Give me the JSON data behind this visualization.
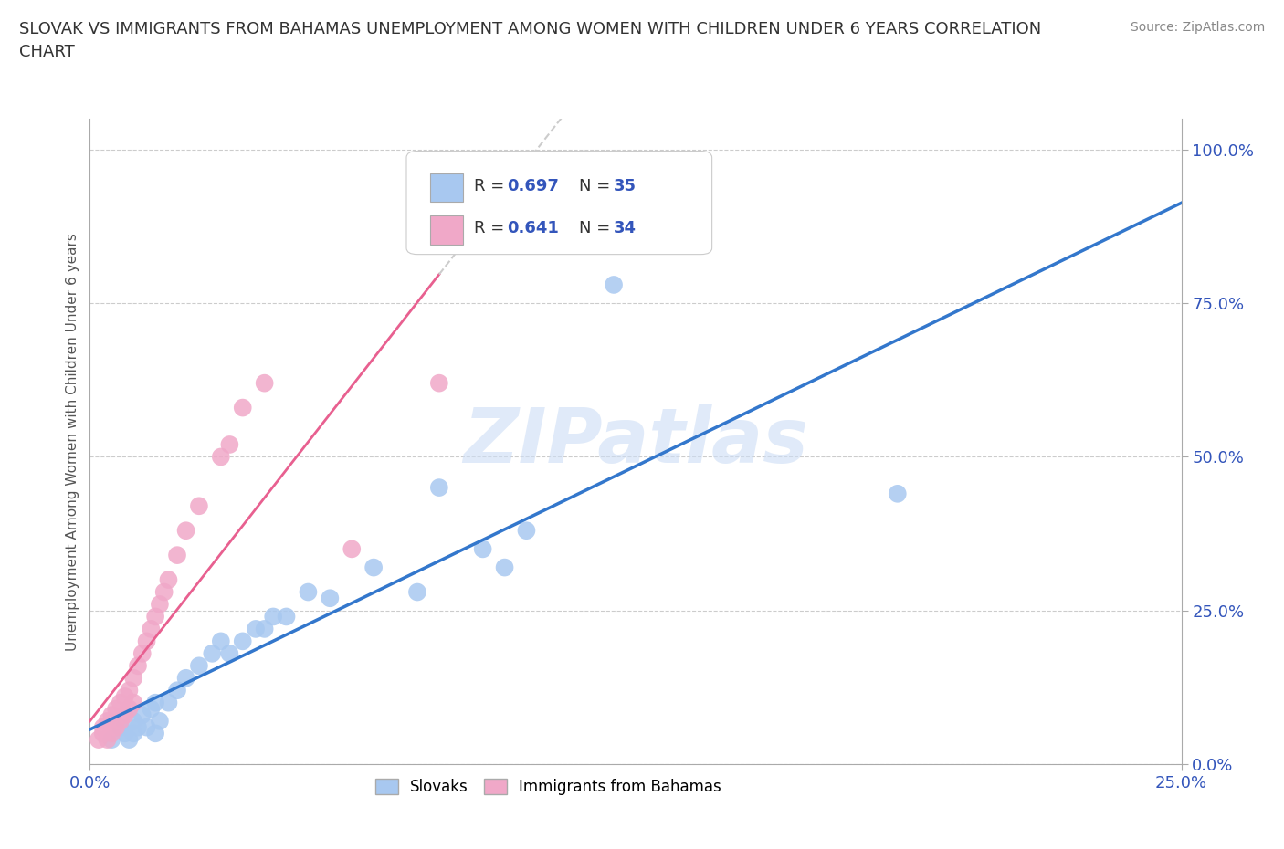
{
  "title": "SLOVAK VS IMMIGRANTS FROM BAHAMAS UNEMPLOYMENT AMONG WOMEN WITH CHILDREN UNDER 6 YEARS CORRELATION\nCHART",
  "source_text": "Source: ZipAtlas.com",
  "ylabel": "Unemployment Among Women with Children Under 6 years",
  "xlim": [
    0,
    0.25
  ],
  "ylim": [
    0,
    1.05
  ],
  "xticks": [
    0.0,
    0.25
  ],
  "yticks": [
    0.0,
    0.25,
    0.5,
    0.75,
    1.0
  ],
  "ytick_labels": [
    "0.0%",
    "25.0%",
    "50.0%",
    "75.0%",
    "100.0%"
  ],
  "xtick_labels": [
    "0.0%",
    "25.0%"
  ],
  "slovak_R": 0.697,
  "slovak_N": 35,
  "bahamas_R": 0.641,
  "bahamas_N": 34,
  "slovak_color": "#a8c8f0",
  "bahamas_color": "#f0a8c8",
  "slovak_line_color": "#3377cc",
  "bahamas_line_color": "#e86090",
  "bahamas_dashed_color": "#cccccc",
  "legend_r_color": "#3355bb",
  "background_color": "#ffffff",
  "slovak_x": [
    0.005,
    0.007,
    0.008,
    0.009,
    0.01,
    0.01,
    0.011,
    0.012,
    0.013,
    0.014,
    0.015,
    0.015,
    0.016,
    0.018,
    0.02,
    0.022,
    0.025,
    0.028,
    0.03,
    0.032,
    0.035,
    0.038,
    0.04,
    0.042,
    0.045,
    0.05,
    0.055,
    0.065,
    0.075,
    0.08,
    0.09,
    0.095,
    0.1,
    0.12,
    0.185
  ],
  "slovak_y": [
    0.04,
    0.06,
    0.05,
    0.04,
    0.07,
    0.05,
    0.06,
    0.08,
    0.06,
    0.09,
    0.05,
    0.1,
    0.07,
    0.1,
    0.12,
    0.14,
    0.16,
    0.18,
    0.2,
    0.18,
    0.2,
    0.22,
    0.22,
    0.24,
    0.24,
    0.28,
    0.27,
    0.32,
    0.28,
    0.45,
    0.35,
    0.32,
    0.38,
    0.78,
    0.44
  ],
  "bahamas_x": [
    0.002,
    0.003,
    0.003,
    0.004,
    0.004,
    0.005,
    0.005,
    0.006,
    0.006,
    0.007,
    0.007,
    0.008,
    0.008,
    0.009,
    0.009,
    0.01,
    0.01,
    0.011,
    0.012,
    0.013,
    0.014,
    0.015,
    0.016,
    0.017,
    0.018,
    0.02,
    0.022,
    0.025,
    0.03,
    0.032,
    0.035,
    0.04,
    0.06,
    0.08
  ],
  "bahamas_y": [
    0.04,
    0.05,
    0.06,
    0.04,
    0.07,
    0.05,
    0.08,
    0.06,
    0.09,
    0.07,
    0.1,
    0.08,
    0.11,
    0.09,
    0.12,
    0.1,
    0.14,
    0.16,
    0.18,
    0.2,
    0.22,
    0.24,
    0.26,
    0.28,
    0.3,
    0.34,
    0.38,
    0.42,
    0.5,
    0.52,
    0.58,
    0.62,
    0.35,
    0.62
  ]
}
